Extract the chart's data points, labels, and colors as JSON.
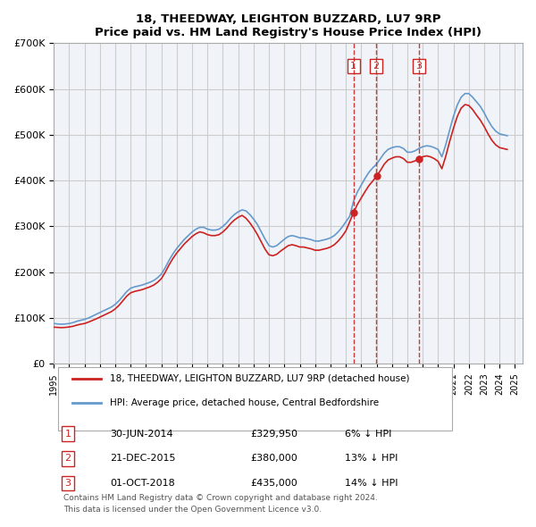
{
  "title": "18, THEEDWAY, LEIGHTON BUZZARD, LU7 9RP",
  "subtitle": "Price paid vs. HM Land Registry's House Price Index (HPI)",
  "ylabel": "",
  "ylim": [
    0,
    700000
  ],
  "yticks": [
    0,
    100000,
    200000,
    300000,
    400000,
    500000,
    600000,
    700000
  ],
  "ytick_labels": [
    "£0",
    "£100K",
    "£200K",
    "£300K",
    "£400K",
    "£500K",
    "£600K",
    "£700K"
  ],
  "xlim_start": 1995.0,
  "xlim_end": 2025.5,
  "hpi_color": "#6699cc",
  "price_color": "#cc2222",
  "transaction_color": "#cc2222",
  "grid_color": "#cccccc",
  "bg_color": "#f0f4f8",
  "transactions": [
    {
      "date": 2014.5,
      "price": 329950,
      "label": "1",
      "date_str": "30-JUN-2014",
      "price_str": "£329,950",
      "hpi_str": "6% ↓ HPI"
    },
    {
      "date": 2015.97,
      "price": 380000,
      "label": "2",
      "date_str": "21-DEC-2015",
      "price_str": "£380,000",
      "hpi_str": "13% ↓ HPI"
    },
    {
      "date": 2018.75,
      "price": 435000,
      "label": "3",
      "date_str": "01-OCT-2018",
      "price_str": "£435,000",
      "hpi_str": "14% ↓ HPI"
    }
  ],
  "legend_label_red": "18, THEEDWAY, LEIGHTON BUZZARD, LU7 9RP (detached house)",
  "legend_label_blue": "HPI: Average price, detached house, Central Bedfordshire",
  "footer1": "Contains HM Land Registry data © Crown copyright and database right 2024.",
  "footer2": "This data is licensed under the Open Government Licence v3.0.",
  "hpi_data_x": [
    1995.0,
    1995.25,
    1995.5,
    1995.75,
    1996.0,
    1996.25,
    1996.5,
    1996.75,
    1997.0,
    1997.25,
    1997.5,
    1997.75,
    1998.0,
    1998.25,
    1998.5,
    1998.75,
    1999.0,
    1999.25,
    1999.5,
    1999.75,
    2000.0,
    2000.25,
    2000.5,
    2000.75,
    2001.0,
    2001.25,
    2001.5,
    2001.75,
    2002.0,
    2002.25,
    2002.5,
    2002.75,
    2003.0,
    2003.25,
    2003.5,
    2003.75,
    2004.0,
    2004.25,
    2004.5,
    2004.75,
    2005.0,
    2005.25,
    2005.5,
    2005.75,
    2006.0,
    2006.25,
    2006.5,
    2006.75,
    2007.0,
    2007.25,
    2007.5,
    2007.75,
    2008.0,
    2008.25,
    2008.5,
    2008.75,
    2009.0,
    2009.25,
    2009.5,
    2009.75,
    2010.0,
    2010.25,
    2010.5,
    2010.75,
    2011.0,
    2011.25,
    2011.5,
    2011.75,
    2012.0,
    2012.25,
    2012.5,
    2012.75,
    2013.0,
    2013.25,
    2013.5,
    2013.75,
    2014.0,
    2014.25,
    2014.5,
    2014.75,
    2015.0,
    2015.25,
    2015.5,
    2015.75,
    2016.0,
    2016.25,
    2016.5,
    2016.75,
    2017.0,
    2017.25,
    2017.5,
    2017.75,
    2018.0,
    2018.25,
    2018.5,
    2018.75,
    2019.0,
    2019.25,
    2019.5,
    2019.75,
    2020.0,
    2020.25,
    2020.5,
    2020.75,
    2021.0,
    2021.25,
    2021.5,
    2021.75,
    2022.0,
    2022.25,
    2022.5,
    2022.75,
    2023.0,
    2023.25,
    2023.5,
    2023.75,
    2024.0,
    2024.25,
    2024.5
  ],
  "hpi_data_y": [
    88000,
    87000,
    86500,
    87000,
    88000,
    90000,
    93000,
    95000,
    97000,
    100000,
    104000,
    108000,
    112000,
    116000,
    120000,
    124000,
    130000,
    138000,
    148000,
    158000,
    165000,
    168000,
    170000,
    172000,
    175000,
    178000,
    182000,
    188000,
    196000,
    210000,
    226000,
    240000,
    252000,
    262000,
    272000,
    280000,
    288000,
    294000,
    298000,
    298000,
    294000,
    292000,
    292000,
    294000,
    300000,
    308000,
    318000,
    326000,
    332000,
    336000,
    334000,
    326000,
    316000,
    304000,
    288000,
    272000,
    258000,
    255000,
    258000,
    265000,
    272000,
    278000,
    280000,
    278000,
    275000,
    275000,
    273000,
    271000,
    268000,
    268000,
    270000,
    272000,
    275000,
    280000,
    288000,
    298000,
    310000,
    322000,
    355000,
    375000,
    390000,
    405000,
    418000,
    428000,
    436000,
    448000,
    460000,
    468000,
    472000,
    474000,
    474000,
    470000,
    462000,
    462000,
    465000,
    470000,
    474000,
    476000,
    475000,
    472000,
    468000,
    452000,
    478000,
    510000,
    540000,
    565000,
    582000,
    590000,
    590000,
    582000,
    572000,
    562000,
    548000,
    532000,
    518000,
    508000,
    502000,
    500000,
    498000
  ],
  "price_data_x": [
    1995.0,
    1995.25,
    1995.5,
    1995.75,
    1996.0,
    1996.25,
    1996.5,
    1996.75,
    1997.0,
    1997.25,
    1997.5,
    1997.75,
    1998.0,
    1998.25,
    1998.5,
    1998.75,
    1999.0,
    1999.25,
    1999.5,
    1999.75,
    2000.0,
    2000.25,
    2000.5,
    2000.75,
    2001.0,
    2001.25,
    2001.5,
    2001.75,
    2002.0,
    2002.25,
    2002.5,
    2002.75,
    2003.0,
    2003.25,
    2003.5,
    2003.75,
    2004.0,
    2004.25,
    2004.5,
    2004.75,
    2005.0,
    2005.25,
    2005.5,
    2005.75,
    2006.0,
    2006.25,
    2006.5,
    2006.75,
    2007.0,
    2007.25,
    2007.5,
    2007.75,
    2008.0,
    2008.25,
    2008.5,
    2008.75,
    2009.0,
    2009.25,
    2009.5,
    2009.75,
    2010.0,
    2010.25,
    2010.5,
    2010.75,
    2011.0,
    2011.25,
    2011.5,
    2011.75,
    2012.0,
    2012.25,
    2012.5,
    2012.75,
    2013.0,
    2013.25,
    2013.5,
    2013.75,
    2014.0,
    2014.25,
    2014.5,
    2014.75,
    2015.0,
    2015.25,
    2015.5,
    2015.75,
    2016.0,
    2016.25,
    2016.5,
    2016.75,
    2017.0,
    2017.25,
    2017.5,
    2017.75,
    2018.0,
    2018.25,
    2018.5,
    2018.75,
    2019.0,
    2019.25,
    2019.5,
    2019.75,
    2020.0,
    2020.25,
    2020.5,
    2020.75,
    2021.0,
    2021.25,
    2021.5,
    2021.75,
    2022.0,
    2022.25,
    2022.5,
    2022.75,
    2023.0,
    2023.25,
    2023.5,
    2023.75,
    2024.0,
    2024.25,
    2024.5
  ],
  "price_data_y": [
    80000,
    79500,
    79000,
    79500,
    80500,
    82000,
    84500,
    86500,
    88000,
    91000,
    94500,
    98000,
    102000,
    106000,
    110000,
    114000,
    120000,
    128000,
    138000,
    148000,
    155000,
    158000,
    160000,
    162000,
    165000,
    168000,
    172000,
    178000,
    186000,
    200000,
    216000,
    230000,
    242000,
    252000,
    262000,
    270000,
    278000,
    284000,
    288000,
    286000,
    282000,
    280000,
    280000,
    282000,
    288000,
    296000,
    306000,
    314000,
    320000,
    324000,
    318000,
    308000,
    296000,
    282000,
    266000,
    250000,
    238000,
    236000,
    239000,
    246000,
    252000,
    258000,
    260000,
    258000,
    255000,
    255000,
    253000,
    251000,
    248000,
    248000,
    250000,
    252000,
    255000,
    260000,
    268000,
    278000,
    290000,
    310000,
    329950,
    348000,
    362000,
    376000,
    389000,
    399000,
    410000,
    422000,
    436000,
    445000,
    449000,
    452000,
    452000,
    448000,
    440000,
    440000,
    443000,
    448000,
    452000,
    454000,
    452000,
    448000,
    442000,
    426000,
    453000,
    485000,
    514000,
    540000,
    558000,
    566000,
    564000,
    555000,
    543000,
    532000,
    518000,
    502000,
    488000,
    478000,
    472000,
    470000,
    468000
  ]
}
